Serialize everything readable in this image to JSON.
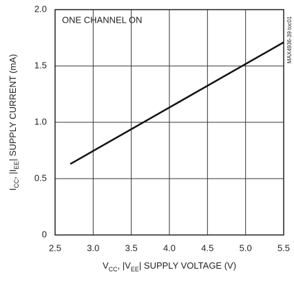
{
  "chart_data": {
    "type": "line",
    "annotation": "ONE CHANNEL ON",
    "side_note": "MAX4936-39 toc01",
    "xlabel": [
      "V",
      "CC",
      ", |V",
      "EE",
      "| SUPPLY VOLTAGE (V)"
    ],
    "ylabel": [
      "I",
      "CC",
      ", |I",
      "EE",
      "| SUPPLY CURRENT (mA)"
    ],
    "x": [
      2.7,
      5.5
    ],
    "series": [
      {
        "color": "#111111",
        "values": [
          0.63,
          1.71
        ]
      }
    ],
    "xlim": [
      2.5,
      5.5
    ],
    "xticks": [
      2.5,
      {
        "value": 3,
        "label": "3.0"
      },
      3.5,
      {
        "value": 4,
        "label": "4.0"
      },
      4.5,
      {
        "value": 5,
        "label": "5.0"
      },
      5.5
    ],
    "ylim": [
      0,
      2
    ],
    "yticks": [
      0,
      0.5,
      {
        "value": 1,
        "label": "1.0"
      },
      1.5,
      {
        "value": 2,
        "label": "2.0"
      }
    ],
    "grid": true
  }
}
